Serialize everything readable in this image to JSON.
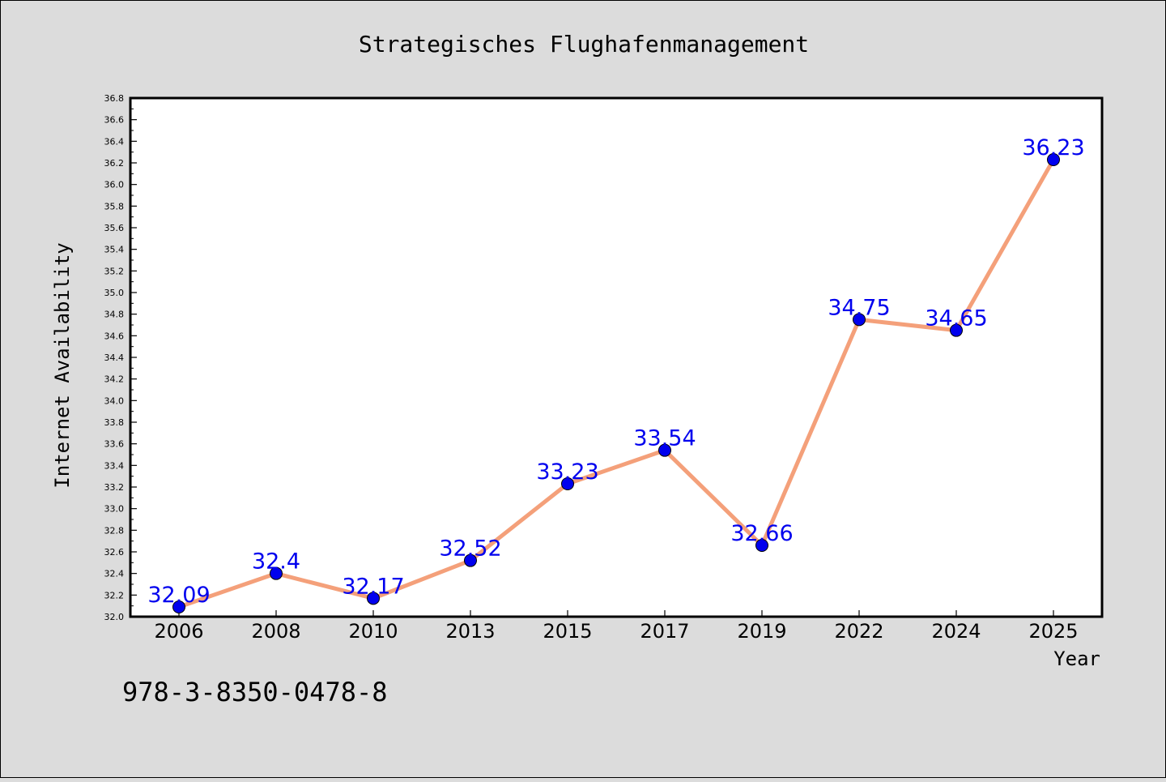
{
  "chart_data": {
    "type": "line",
    "title": "Strategisches Flughafenmanagement",
    "xlabel": "Year",
    "ylabel": "Internet Availability",
    "categories": [
      "2006",
      "2008",
      "2010",
      "2013",
      "2015",
      "2017",
      "2019",
      "2022",
      "2024",
      "2025"
    ],
    "series": [
      {
        "values": [
          32.09,
          32.4,
          32.17,
          32.52,
          33.23,
          33.54,
          32.66,
          34.75,
          34.65,
          36.23
        ]
      }
    ],
    "value_labels": [
      "32.09",
      "32.4",
      "32.17",
      "32.52",
      "33.23",
      "33.54",
      "32.66",
      "34.75",
      "34.65",
      "36.23"
    ],
    "ylim": [
      32.0,
      36.8
    ],
    "y_major_step": 0.2,
    "y_tick_labels": [
      "32.0",
      "32.2",
      "32.4",
      "32.6",
      "32.8",
      "33.0",
      "33.2",
      "33.4",
      "33.6",
      "33.8",
      "34.0",
      "34.2",
      "34.4",
      "34.6",
      "34.8",
      "35.0",
      "35.2",
      "35.4",
      "35.6",
      "35.8",
      "36.0",
      "36.2",
      "36.4",
      "36.6",
      "36.8"
    ],
    "grid": false,
    "line_color": "#f4a07a",
    "marker_color": "#0000ee",
    "label_color": "#0000ee"
  },
  "footer_text": "978-3-8350-0478-8"
}
